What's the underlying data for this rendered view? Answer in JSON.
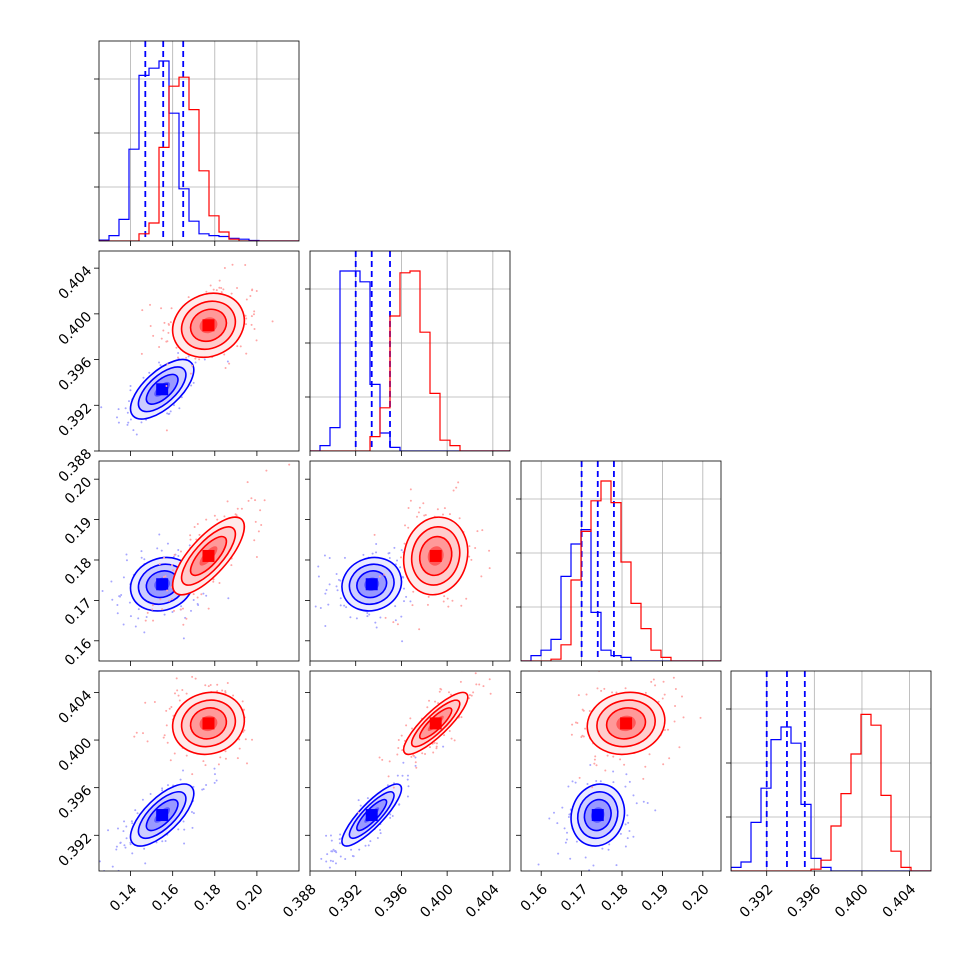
{
  "chart_data": {
    "type": "corner",
    "title": "",
    "parameters": [
      {
        "label": "",
        "range": [
          0.125,
          0.22
        ],
        "ticks": [
          0.14,
          0.16,
          0.18,
          0.2
        ],
        "tick_labels": [
          "0.14",
          "0.16",
          "0.18",
          "0.20"
        ]
      },
      {
        "label": "",
        "range": [
          0.388,
          0.4055
        ],
        "ticks": [
          0.388,
          0.392,
          0.396,
          0.4,
          0.404
        ],
        "tick_labels": [
          "0.388",
          "0.392",
          "0.396",
          "0.400",
          "0.404"
        ]
      },
      {
        "label": "",
        "range": [
          0.155,
          0.2045
        ],
        "ticks": [
          0.16,
          0.17,
          0.18,
          0.19,
          0.2
        ],
        "tick_labels": [
          "0.16",
          "0.17",
          "0.18",
          "0.19",
          "0.20"
        ]
      },
      {
        "label": "",
        "range": [
          0.389,
          0.4058
        ],
        "ticks": [
          0.392,
          0.396,
          0.4,
          0.404
        ],
        "tick_labels": [
          "0.392",
          "0.396",
          "0.400",
          "0.404"
        ]
      }
    ],
    "series": [
      {
        "color": "#0000ff",
        "quantiles": [
          [
            0.147,
            0.1555,
            0.165
          ],
          [
            0.392,
            0.3934,
            0.395
          ],
          [
            0.17,
            0.174,
            0.178
          ],
          [
            0.392,
            0.3937,
            0.3952
          ]
        ],
        "means": [
          0.155,
          0.3934,
          0.174,
          0.3937
        ],
        "sigmas": [
          0.0075,
          0.0013,
          0.0033,
          0.0013
        ],
        "correlations": [
          [
            1,
            0.65,
            0.15,
            0.7
          ],
          [
            0.65,
            1,
            0.1,
            0.85
          ],
          [
            0.15,
            0.1,
            1,
            0.1
          ],
          [
            0.7,
            0.85,
            0.1,
            1
          ]
        ],
        "histograms": [
          {
            "edges": [
              0.125,
              0.22
            ],
            "counts": [
              0.005,
              0.03,
              0.12,
              0.51,
              0.92,
              0.96,
              1.0,
              0.71,
              0.29,
              0.11,
              0.04,
              0.03,
              0.025,
              0.015,
              0.01,
              0.003,
              0.0,
              0.0,
              0.0,
              0.0
            ]
          },
          {
            "edges": [
              0.388,
              0.4055
            ],
            "counts": [
              0.0,
              0.03,
              0.13,
              1.0,
              1.0,
              0.94,
              0.37,
              0.1,
              0.02,
              0.0,
              0.0,
              0.0,
              0.0,
              0.0,
              0.0,
              0.0,
              0.0,
              0.0,
              0.0,
              0.0
            ]
          },
          {
            "edges": [
              0.155,
              0.2045
            ],
            "counts": [
              0.0,
              0.03,
              0.06,
              0.12,
              0.47,
              0.65,
              0.73,
              0.27,
              0.06,
              0.03,
              0.02,
              0.0,
              0.0,
              0.0,
              0.0,
              0.0,
              0.0,
              0.0,
              0.0,
              0.0
            ]
          },
          {
            "edges": [
              0.389,
              0.4058
            ],
            "counts": [
              0.02,
              0.05,
              0.27,
              0.46,
              0.73,
              0.8,
              0.71,
              0.37,
              0.07,
              0.02,
              0.0,
              0.0,
              0.0,
              0.0,
              0.0,
              0.0,
              0.0,
              0.0,
              0.0,
              0.0
            ]
          }
        ]
      },
      {
        "color": "#ff0000",
        "quantiles": null,
        "means": [
          0.177,
          0.399,
          0.181,
          0.4014
        ],
        "sigmas": [
          0.0085,
          0.0014,
          0.0048,
          0.0013
        ],
        "correlations": [
          [
            1,
            0.15,
            0.75,
            0.1
          ],
          [
            0.15,
            1,
            0.1,
            0.85
          ],
          [
            0.75,
            0.1,
            1,
            0.1
          ],
          [
            0.1,
            0.85,
            0.1,
            1
          ]
        ],
        "histograms": [
          {
            "edges": [
              0.125,
              0.22
            ],
            "counts": [
              0.0,
              0.0,
              0.0,
              0.0,
              0.04,
              0.1,
              0.52,
              0.86,
              0.91,
              0.73,
              0.39,
              0.14,
              0.05,
              0.01,
              0.0,
              0.0,
              0.0,
              0.0,
              0.0,
              0.0
            ]
          },
          {
            "edges": [
              0.388,
              0.4055
            ],
            "counts": [
              0.0,
              0.0,
              0.0,
              0.0,
              0.0,
              0.0,
              0.08,
              0.24,
              0.75,
              0.99,
              1.0,
              0.66,
              0.32,
              0.06,
              0.03,
              0.0,
              0.0,
              0.0,
              0.0,
              0.0
            ]
          },
          {
            "edges": [
              0.155,
              0.2045
            ],
            "counts": [
              0.0,
              0.0,
              0.0,
              0.01,
              0.09,
              0.45,
              0.72,
              0.89,
              1.0,
              0.88,
              0.55,
              0.32,
              0.18,
              0.06,
              0.02,
              0.0,
              0.0,
              0.0,
              0.0,
              0.0
            ]
          },
          {
            "edges": [
              0.389,
              0.4058
            ],
            "counts": [
              0.0,
              0.0,
              0.0,
              0.0,
              0.0,
              0.0,
              0.0,
              0.0,
              0.01,
              0.06,
              0.25,
              0.43,
              0.65,
              0.87,
              0.81,
              0.42,
              0.11,
              0.02,
              0.0,
              0.0
            ]
          }
        ]
      }
    ],
    "grid": true,
    "scatter_points_per_panel": 140
  }
}
